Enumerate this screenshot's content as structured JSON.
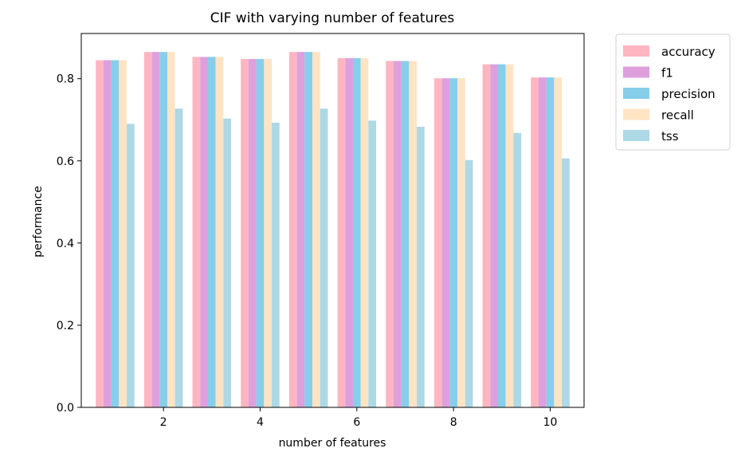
{
  "chart_data": {
    "type": "bar",
    "title": "CIF with varying number of features",
    "xlabel": "number of features",
    "ylabel": "performance",
    "x": [
      1,
      2,
      3,
      4,
      5,
      6,
      7,
      8,
      9,
      10
    ],
    "xticks": [
      2,
      4,
      6,
      8,
      10
    ],
    "xlim": [
      0.3,
      10.7
    ],
    "ylim": [
      0.0,
      0.91
    ],
    "yticks": [
      "0.0",
      "0.2",
      "0.4",
      "0.6",
      "0.8"
    ],
    "grid": false,
    "legend_position": "outside upper right",
    "series": [
      {
        "name": "accuracy",
        "color": "#ffb6c1",
        "values": [
          0.845,
          0.865,
          0.853,
          0.848,
          0.865,
          0.85,
          0.843,
          0.801,
          0.835,
          0.803
        ]
      },
      {
        "name": "f1",
        "color": "#dda0dd",
        "values": [
          0.845,
          0.865,
          0.853,
          0.848,
          0.865,
          0.85,
          0.843,
          0.801,
          0.835,
          0.803
        ]
      },
      {
        "name": "precision",
        "color": "#87ceeb",
        "values": [
          0.845,
          0.865,
          0.853,
          0.848,
          0.865,
          0.85,
          0.843,
          0.801,
          0.835,
          0.803
        ]
      },
      {
        "name": "recall",
        "color": "#ffe4c4",
        "values": [
          0.845,
          0.865,
          0.853,
          0.848,
          0.865,
          0.85,
          0.843,
          0.801,
          0.835,
          0.803
        ]
      },
      {
        "name": "tss",
        "color": "#add8e6",
        "values": [
          0.69,
          0.727,
          0.703,
          0.693,
          0.727,
          0.698,
          0.683,
          0.602,
          0.668,
          0.606
        ]
      }
    ]
  }
}
